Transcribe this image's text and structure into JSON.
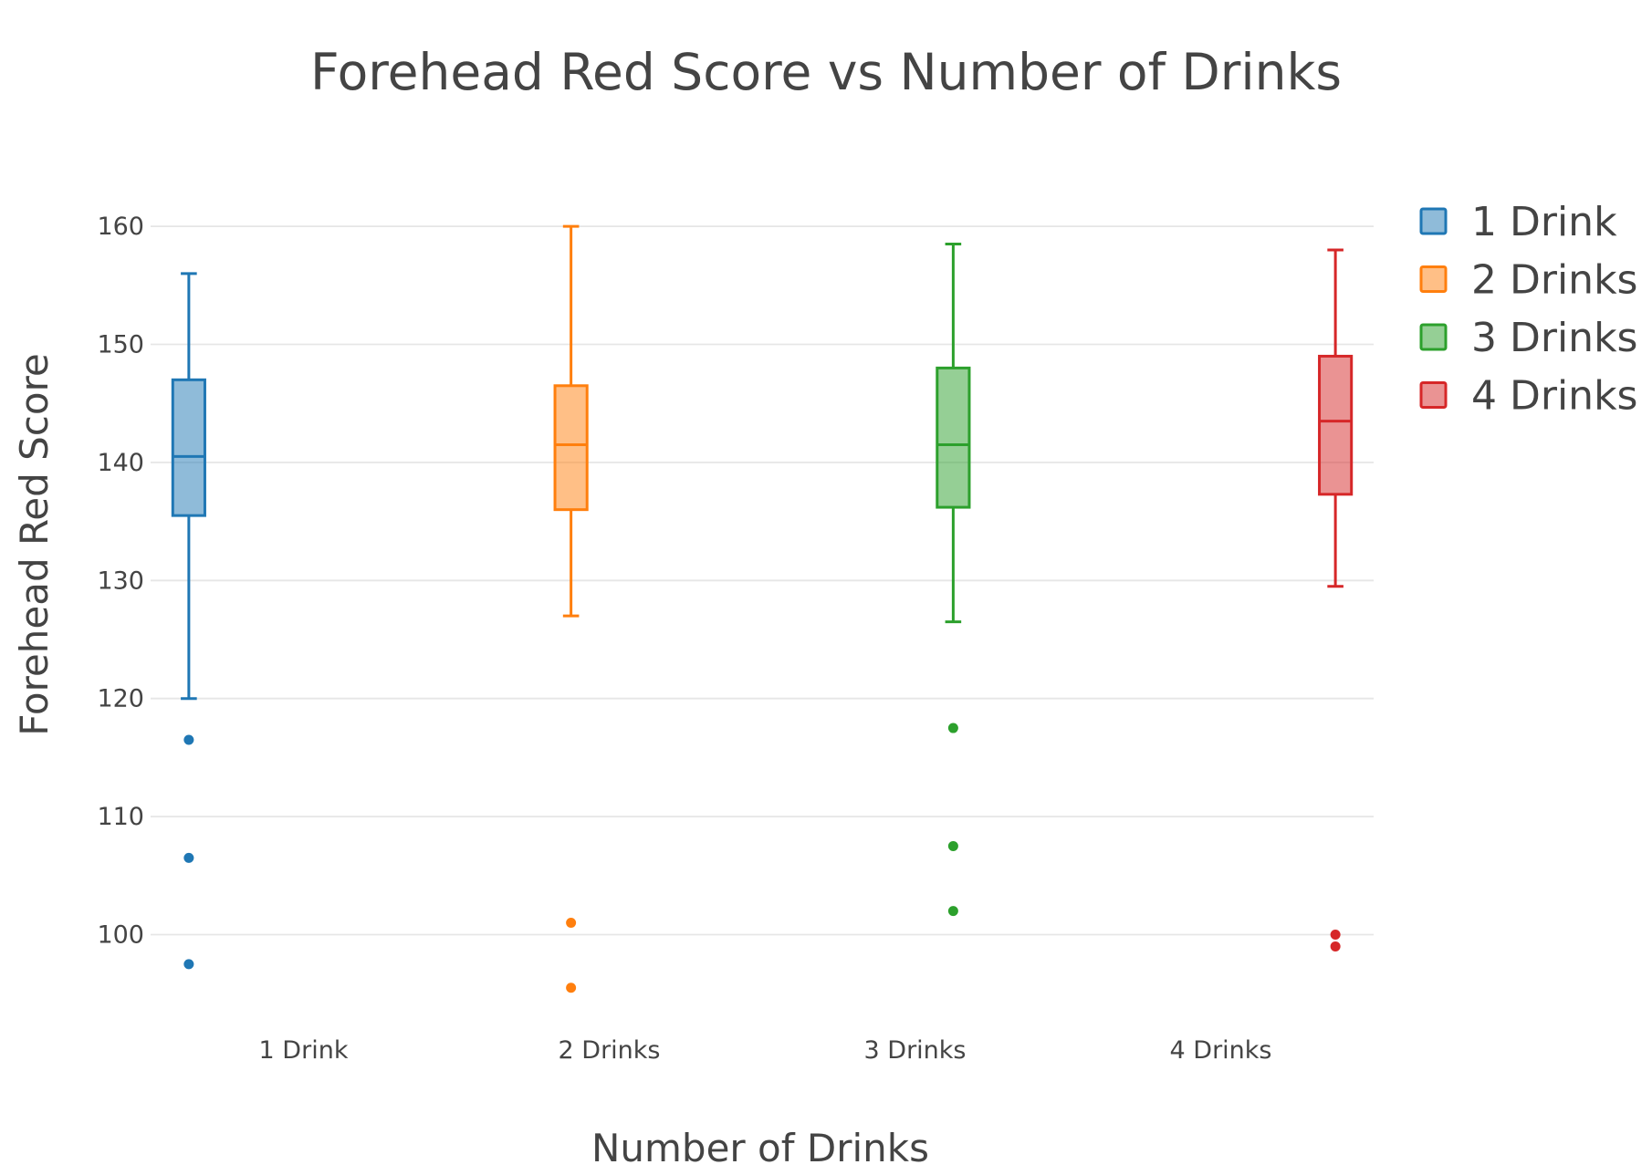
{
  "chart_data": {
    "type": "box",
    "title": "Forehead Red Score vs Number of Drinks",
    "xlabel": "Number of Drinks",
    "ylabel": "Forehead Red Score",
    "categories": [
      "1 Drink",
      "2 Drinks",
      "3 Drinks",
      "4 Drinks"
    ],
    "yticks": [
      100,
      110,
      120,
      130,
      140,
      150,
      160
    ],
    "ylim": [
      93,
      166
    ],
    "grid": true,
    "legend_position": "top-right",
    "series": [
      {
        "name": "1 Drink",
        "color": "#1f77b4",
        "fill": "rgba(31,119,180,0.5)",
        "lower_whisker": 120,
        "q1": 135.5,
        "median": 140.5,
        "q3": 147,
        "upper_whisker": 156,
        "outliers": [
          116.5,
          106.5,
          97.5
        ]
      },
      {
        "name": "2 Drinks",
        "color": "#ff7f0e",
        "fill": "rgba(255,127,14,0.5)",
        "lower_whisker": 127,
        "q1": 136,
        "median": 141.5,
        "q3": 146.5,
        "upper_whisker": 160,
        "outliers": [
          101,
          95.5
        ]
      },
      {
        "name": "3 Drinks",
        "color": "#2ca02c",
        "fill": "rgba(44,160,44,0.5)",
        "lower_whisker": 126.5,
        "q1": 136.2,
        "median": 141.5,
        "q3": 148,
        "upper_whisker": 158.5,
        "outliers": [
          117.5,
          107.5,
          102
        ]
      },
      {
        "name": "4 Drinks",
        "color": "#d62728",
        "fill": "rgba(214,39,40,0.5)",
        "lower_whisker": 129.5,
        "q1": 137.3,
        "median": 143.5,
        "q3": 149,
        "upper_whisker": 158,
        "outliers": [
          100,
          99
        ]
      }
    ]
  }
}
